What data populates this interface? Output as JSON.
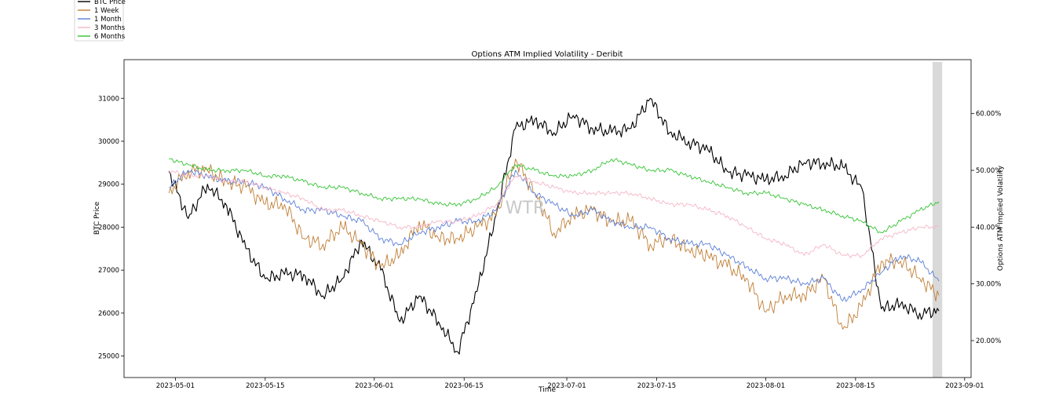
{
  "chart_data": {
    "type": "line",
    "title": "Options ATM Implied Volatility - Deribit",
    "xlabel": "Time",
    "ylabel_left": "BTC Price",
    "ylabel_right": "Options ATM Implied Volatility",
    "watermark": "WTR",
    "legend_position": "top-left (outside plot)",
    "grid": false,
    "x_tick_labels": [
      "2023-05-01",
      "2023-05-15",
      "2023-06-01",
      "2023-06-15",
      "2023-07-01",
      "2023-07-15",
      "2023-08-01",
      "2023-08-15",
      "2023-09-01"
    ],
    "y_left_ticks": [
      25000,
      26000,
      27000,
      28000,
      29000,
      30000,
      31000
    ],
    "y_left_lim": [
      24500,
      31900
    ],
    "y_right_tick_labels": [
      "20.00%",
      "30.00%",
      "40.00%",
      "50.00%",
      "60.00%"
    ],
    "y_right_ticks": [
      20,
      30,
      40,
      50,
      60
    ],
    "y_right_lim": [
      13.5,
      69.5
    ],
    "x_lim": [
      "2023-04-23",
      "2023-09-02"
    ],
    "shaded_region": [
      "2023-08-27",
      "2023-08-28 12:00"
    ],
    "dates": [
      "2023-04-30",
      "2023-05-03",
      "2023-05-06",
      "2023-05-09",
      "2023-05-12",
      "2023-05-15",
      "2023-05-18",
      "2023-05-21",
      "2023-05-24",
      "2023-05-27",
      "2023-05-30",
      "2023-06-02",
      "2023-06-05",
      "2023-06-08",
      "2023-06-11",
      "2023-06-14",
      "2023-06-17",
      "2023-06-20",
      "2023-06-23",
      "2023-06-26",
      "2023-06-29",
      "2023-07-02",
      "2023-07-05",
      "2023-07-08",
      "2023-07-11",
      "2023-07-14",
      "2023-07-17",
      "2023-07-20",
      "2023-07-23",
      "2023-07-26",
      "2023-07-29",
      "2023-08-01",
      "2023-08-04",
      "2023-08-07",
      "2023-08-10",
      "2023-08-13",
      "2023-08-16",
      "2023-08-19",
      "2023-08-22",
      "2023-08-25",
      "2023-08-28"
    ],
    "series": [
      {
        "name": "BTC Price",
        "axis": "left",
        "color": "#000000",
        "values": [
          29300,
          28200,
          29000,
          28500,
          27500,
          26800,
          26900,
          26900,
          26400,
          26800,
          27700,
          27000,
          25800,
          26400,
          25800,
          25100,
          26500,
          28300,
          30300,
          30500,
          30200,
          30600,
          30300,
          30200,
          30300,
          31000,
          30200,
          30000,
          29800,
          29300,
          29200,
          29100,
          29200,
          29500,
          29500,
          29400,
          28900,
          26100,
          26200,
          26000,
          26050
        ]
      },
      {
        "name": "1 Week",
        "axis": "right",
        "color": "#c07e35",
        "values": [
          46,
          50,
          50,
          48,
          47,
          44,
          44,
          38,
          37,
          40,
          37,
          33,
          35,
          41,
          38,
          38,
          40,
          42,
          52,
          46,
          39,
          42,
          43,
          41,
          41,
          37,
          38,
          36,
          35,
          33,
          31,
          25,
          28,
          28,
          31,
          22,
          26,
          34,
          34,
          31,
          28
        ]
      },
      {
        "name": "1 Month",
        "axis": "right",
        "color": "#5b7fd6",
        "values": [
          47,
          50,
          49,
          48,
          48,
          47,
          45,
          43,
          43,
          42,
          41,
          38,
          37,
          39,
          40,
          41,
          41,
          43,
          50,
          46,
          44,
          42,
          43,
          41,
          40,
          40,
          38,
          37,
          37,
          35,
          33,
          31,
          31,
          30,
          31,
          27,
          29,
          32,
          35,
          34,
          30.5
        ]
      },
      {
        "name": "3 Months",
        "axis": "right",
        "color": "#f4b6c6",
        "values": [
          50,
          49,
          49,
          48,
          48,
          47,
          46,
          45,
          43,
          43,
          42,
          41,
          40,
          40,
          41,
          41,
          42,
          44,
          49,
          48,
          47,
          46,
          46,
          46,
          46,
          45,
          44,
          44,
          43,
          42,
          40,
          38,
          37,
          35,
          37,
          35,
          35,
          38,
          39,
          40,
          40
        ]
      },
      {
        "name": "6 Months",
        "axis": "right",
        "color": "#33c433",
        "values": [
          52,
          51,
          50,
          50,
          50,
          49,
          49,
          48,
          47,
          47,
          46,
          45,
          45,
          45,
          44,
          44,
          45,
          47,
          51,
          50,
          49,
          49,
          50,
          52,
          51,
          50,
          50,
          49,
          48,
          47,
          46,
          46,
          45,
          44,
          43,
          42,
          41,
          39,
          41,
          43,
          44.5
        ]
      }
    ]
  }
}
